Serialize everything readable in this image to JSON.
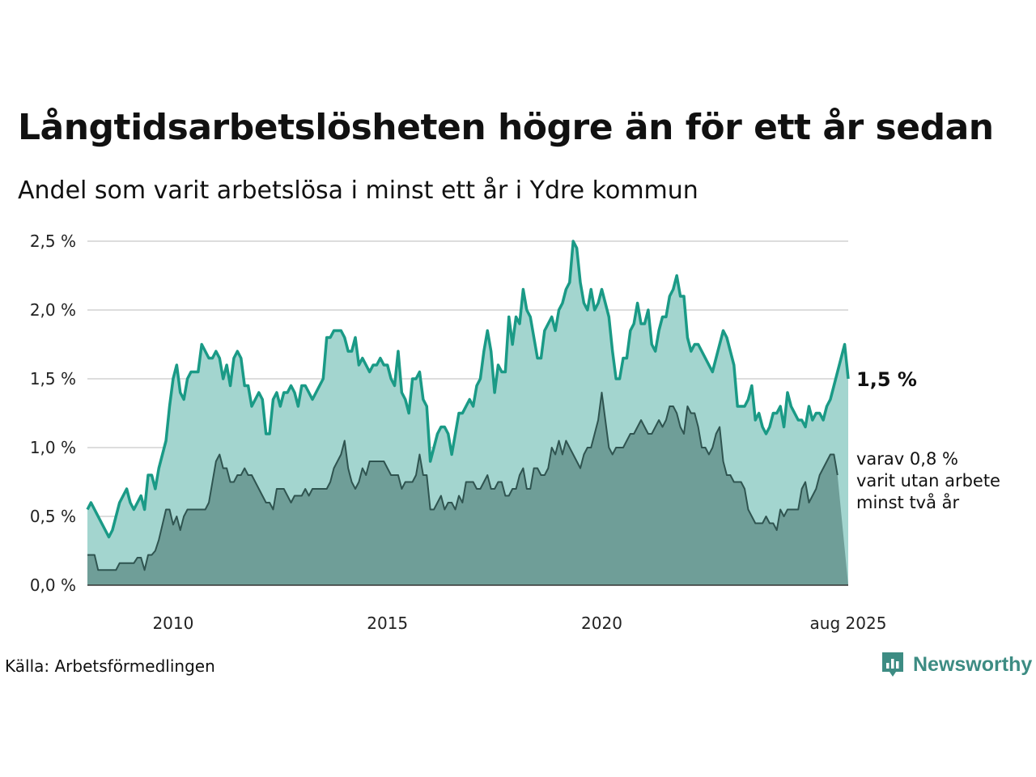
{
  "title": "Långtidsarbetslösheten högre än för ett år sedan",
  "subtitle": "Andel som varit arbetslösa i minst ett år i Ydre kommun",
  "source": "Källa: Arbetsförmedlingen",
  "brand": {
    "name": "Newsworthy",
    "color": "#3d8c83"
  },
  "chart_data": {
    "type": "area",
    "x_ticks": [
      "2010",
      "2015",
      "2020",
      "aug 2025"
    ],
    "y_ticks": [
      "0,0 %",
      "0,5 %",
      "1,0 %",
      "1,5 %",
      "2,0 %",
      "2,5 %"
    ],
    "ylim": [
      0,
      2.5
    ],
    "grid": true,
    "end_label": "1,5 %",
    "annotation": [
      "varav 0,8 %",
      "varit utan arbete",
      "minst två år"
    ],
    "colors": {
      "line1": "#1a9a86",
      "fill1": "#a3d5cf",
      "line2": "#2f5450",
      "fill2": "#6f9e98"
    },
    "series": [
      {
        "name": "minst ett år",
        "x_start": "2008-01",
        "x_end": "2025-08",
        "values": [
          0.55,
          0.6,
          0.55,
          0.5,
          0.45,
          0.4,
          0.35,
          0.4,
          0.5,
          0.6,
          0.65,
          0.7,
          0.6,
          0.55,
          0.6,
          0.65,
          0.55,
          0.8,
          0.8,
          0.7,
          0.85,
          0.95,
          1.05,
          1.3,
          1.5,
          1.6,
          1.4,
          1.35,
          1.5,
          1.55,
          1.55,
          1.55,
          1.75,
          1.7,
          1.65,
          1.65,
          1.7,
          1.65,
          1.5,
          1.6,
          1.45,
          1.65,
          1.7,
          1.65,
          1.45,
          1.45,
          1.3,
          1.35,
          1.4,
          1.35,
          1.1,
          1.1,
          1.35,
          1.4,
          1.3,
          1.4,
          1.4,
          1.45,
          1.4,
          1.3,
          1.45,
          1.45,
          1.4,
          1.35,
          1.4,
          1.45,
          1.5,
          1.8,
          1.8,
          1.85,
          1.85,
          1.85,
          1.8,
          1.7,
          1.7,
          1.8,
          1.6,
          1.65,
          1.6,
          1.55,
          1.6,
          1.6,
          1.65,
          1.6,
          1.6,
          1.5,
          1.45,
          1.7,
          1.4,
          1.35,
          1.25,
          1.5,
          1.5,
          1.55,
          1.35,
          1.3,
          0.9,
          1.0,
          1.1,
          1.15,
          1.15,
          1.1,
          0.95,
          1.1,
          1.25,
          1.25,
          1.3,
          1.35,
          1.3,
          1.45,
          1.5,
          1.7,
          1.85,
          1.7,
          1.4,
          1.6,
          1.55,
          1.55,
          1.95,
          1.75,
          1.95,
          1.9,
          2.15,
          2.0,
          1.95,
          1.8,
          1.65,
          1.65,
          1.85,
          1.9,
          1.95,
          1.85,
          2.0,
          2.05,
          2.15,
          2.2,
          2.5,
          2.45,
          2.2,
          2.05,
          2.0,
          2.15,
          2.0,
          2.05,
          2.15,
          2.05,
          1.95,
          1.7,
          1.5,
          1.5,
          1.65,
          1.65,
          1.85,
          1.9,
          2.05,
          1.9,
          1.9,
          2.0,
          1.75,
          1.7,
          1.85,
          1.95,
          1.95,
          2.1,
          2.15,
          2.25,
          2.1,
          2.1,
          1.8,
          1.7,
          1.75,
          1.75,
          1.7,
          1.65,
          1.6,
          1.55,
          1.65,
          1.75,
          1.85,
          1.8,
          1.7,
          1.6,
          1.3,
          1.3,
          1.3,
          1.35,
          1.45,
          1.2,
          1.25,
          1.15,
          1.1,
          1.15,
          1.25,
          1.25,
          1.3,
          1.15,
          1.4,
          1.3,
          1.25,
          1.2,
          1.2,
          1.15,
          1.3,
          1.2,
          1.25,
          1.25,
          1.2,
          1.3,
          1.35,
          1.45,
          1.55,
          1.65,
          1.75,
          1.5
        ]
      },
      {
        "name": "varav minst två år",
        "x_start": "2008-01",
        "x_end": "2025-08",
        "values": [
          0.22,
          0.22,
          0.22,
          0.11,
          0.11,
          0.11,
          0.11,
          0.11,
          0.11,
          0.16,
          0.16,
          0.16,
          0.16,
          0.16,
          0.2,
          0.2,
          0.11,
          0.22,
          0.22,
          0.25,
          0.33,
          0.44,
          0.55,
          0.55,
          0.44,
          0.5,
          0.4,
          0.5,
          0.55,
          0.55,
          0.55,
          0.55,
          0.55,
          0.55,
          0.6,
          0.75,
          0.9,
          0.95,
          0.85,
          0.85,
          0.75,
          0.75,
          0.8,
          0.8,
          0.85,
          0.8,
          0.8,
          0.75,
          0.7,
          0.65,
          0.6,
          0.6,
          0.55,
          0.7,
          0.7,
          0.7,
          0.65,
          0.6,
          0.65,
          0.65,
          0.65,
          0.7,
          0.65,
          0.7,
          0.7,
          0.7,
          0.7,
          0.7,
          0.75,
          0.85,
          0.9,
          0.95,
          1.05,
          0.85,
          0.75,
          0.7,
          0.75,
          0.85,
          0.8,
          0.9,
          0.9,
          0.9,
          0.9,
          0.9,
          0.85,
          0.8,
          0.8,
          0.8,
          0.7,
          0.75,
          0.75,
          0.75,
          0.8,
          0.95,
          0.8,
          0.8,
          0.55,
          0.55,
          0.6,
          0.65,
          0.55,
          0.6,
          0.6,
          0.55,
          0.65,
          0.6,
          0.75,
          0.75,
          0.75,
          0.7,
          0.7,
          0.75,
          0.8,
          0.7,
          0.7,
          0.75,
          0.75,
          0.65,
          0.65,
          0.7,
          0.7,
          0.8,
          0.85,
          0.7,
          0.7,
          0.85,
          0.85,
          0.8,
          0.8,
          0.85,
          1.0,
          0.95,
          1.05,
          0.95,
          1.05,
          1.0,
          0.95,
          0.9,
          0.85,
          0.95,
          1.0,
          1.0,
          1.1,
          1.2,
          1.4,
          1.2,
          1.0,
          0.95,
          1.0,
          1.0,
          1.0,
          1.05,
          1.1,
          1.1,
          1.15,
          1.2,
          1.15,
          1.1,
          1.1,
          1.15,
          1.2,
          1.15,
          1.2,
          1.3,
          1.3,
          1.25,
          1.15,
          1.1,
          1.3,
          1.25,
          1.25,
          1.15,
          1.0,
          1.0,
          0.95,
          1.0,
          1.1,
          1.15,
          0.9,
          0.8,
          0.8,
          0.75,
          0.75,
          0.75,
          0.7,
          0.55,
          0.5,
          0.45,
          0.45,
          0.45,
          0.5,
          0.45,
          0.45,
          0.4,
          0.55,
          0.5,
          0.55,
          0.55,
          0.55,
          0.55,
          0.7,
          0.75,
          0.6,
          0.65,
          0.7,
          0.8,
          0.85,
          0.9,
          0.95,
          0.95,
          0.8
        ]
      }
    ]
  }
}
